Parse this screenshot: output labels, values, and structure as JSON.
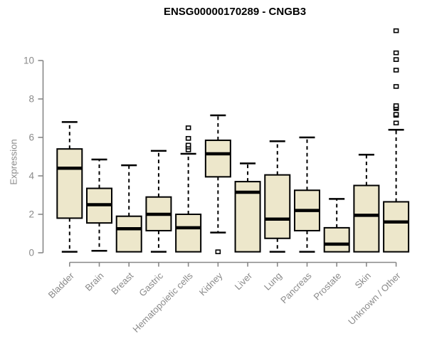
{
  "colors": {
    "background": "#ffffff",
    "box_fill": "#ede7cb",
    "box_stroke": "#000000",
    "median_color": "#000000",
    "whisker_color": "#000000",
    "axis_color": "#888888",
    "tick_label_color": "#8a8a8a",
    "title_color": "#000000",
    "outlier_fill": "#ffffff",
    "outlier_stroke": "#000000"
  },
  "chart_data": {
    "type": "box",
    "title": "ENSG00000170289 - CNGB3",
    "xlabel": "",
    "ylabel": "Expression",
    "ylim": [
      0,
      11.6
    ],
    "yticks": [
      0,
      2,
      4,
      6,
      8,
      10
    ],
    "grid": false,
    "categories": [
      "Bladder",
      "Brain",
      "Breast",
      "Gastric",
      "Hematopoietic cells",
      "Kidney",
      "Liver",
      "Lung",
      "Pancreas",
      "Prostate",
      "Skin",
      "Unknown / Other"
    ],
    "series": [
      {
        "name": "Bladder",
        "min": 0.05,
        "q1": 1.8,
        "median": 4.4,
        "q3": 5.4,
        "max": 6.8,
        "outliers": []
      },
      {
        "name": "Brain",
        "min": 0.1,
        "q1": 1.55,
        "median": 2.5,
        "q3": 3.35,
        "max": 4.85,
        "outliers": []
      },
      {
        "name": "Breast",
        "min": 0.05,
        "q1": 0.05,
        "median": 1.25,
        "q3": 1.9,
        "max": 4.55,
        "outliers": []
      },
      {
        "name": "Gastric",
        "min": 0.05,
        "q1": 1.15,
        "median": 2.0,
        "q3": 2.9,
        "max": 5.3,
        "outliers": []
      },
      {
        "name": "Hematopoietic cells",
        "min": 0.05,
        "q1": 0.05,
        "median": 1.3,
        "q3": 2.0,
        "max": 5.15,
        "outliers": [
          5.35,
          5.5,
          5.6,
          5.95,
          6.5
        ]
      },
      {
        "name": "Kidney",
        "min": 1.05,
        "q1": 3.95,
        "median": 5.15,
        "q3": 5.85,
        "max": 7.15,
        "outliers": [
          0.05
        ]
      },
      {
        "name": "Liver",
        "min": 0.05,
        "q1": 0.05,
        "median": 3.15,
        "q3": 3.7,
        "max": 4.65,
        "outliers": []
      },
      {
        "name": "Lung",
        "min": 0.05,
        "q1": 0.75,
        "median": 1.75,
        "q3": 4.05,
        "max": 5.8,
        "outliers": []
      },
      {
        "name": "Pancreas",
        "min": 0.05,
        "q1": 1.15,
        "median": 2.2,
        "q3": 3.25,
        "max": 6.0,
        "outliers": []
      },
      {
        "name": "Prostate",
        "min": 0.05,
        "q1": 0.05,
        "median": 0.45,
        "q3": 1.3,
        "max": 2.8,
        "outliers": []
      },
      {
        "name": "Skin",
        "min": 0.05,
        "q1": 0.05,
        "median": 1.95,
        "q3": 3.5,
        "max": 5.1,
        "outliers": []
      },
      {
        "name": "Unknown / Other",
        "min": 0.05,
        "q1": 0.05,
        "median": 1.6,
        "q3": 2.65,
        "max": 6.4,
        "outliers": [
          6.75,
          7.15,
          7.2,
          7.5,
          7.55,
          7.65,
          8.65,
          9.5,
          10.05,
          10.4,
          11.55
        ]
      }
    ],
    "legend": null
  }
}
